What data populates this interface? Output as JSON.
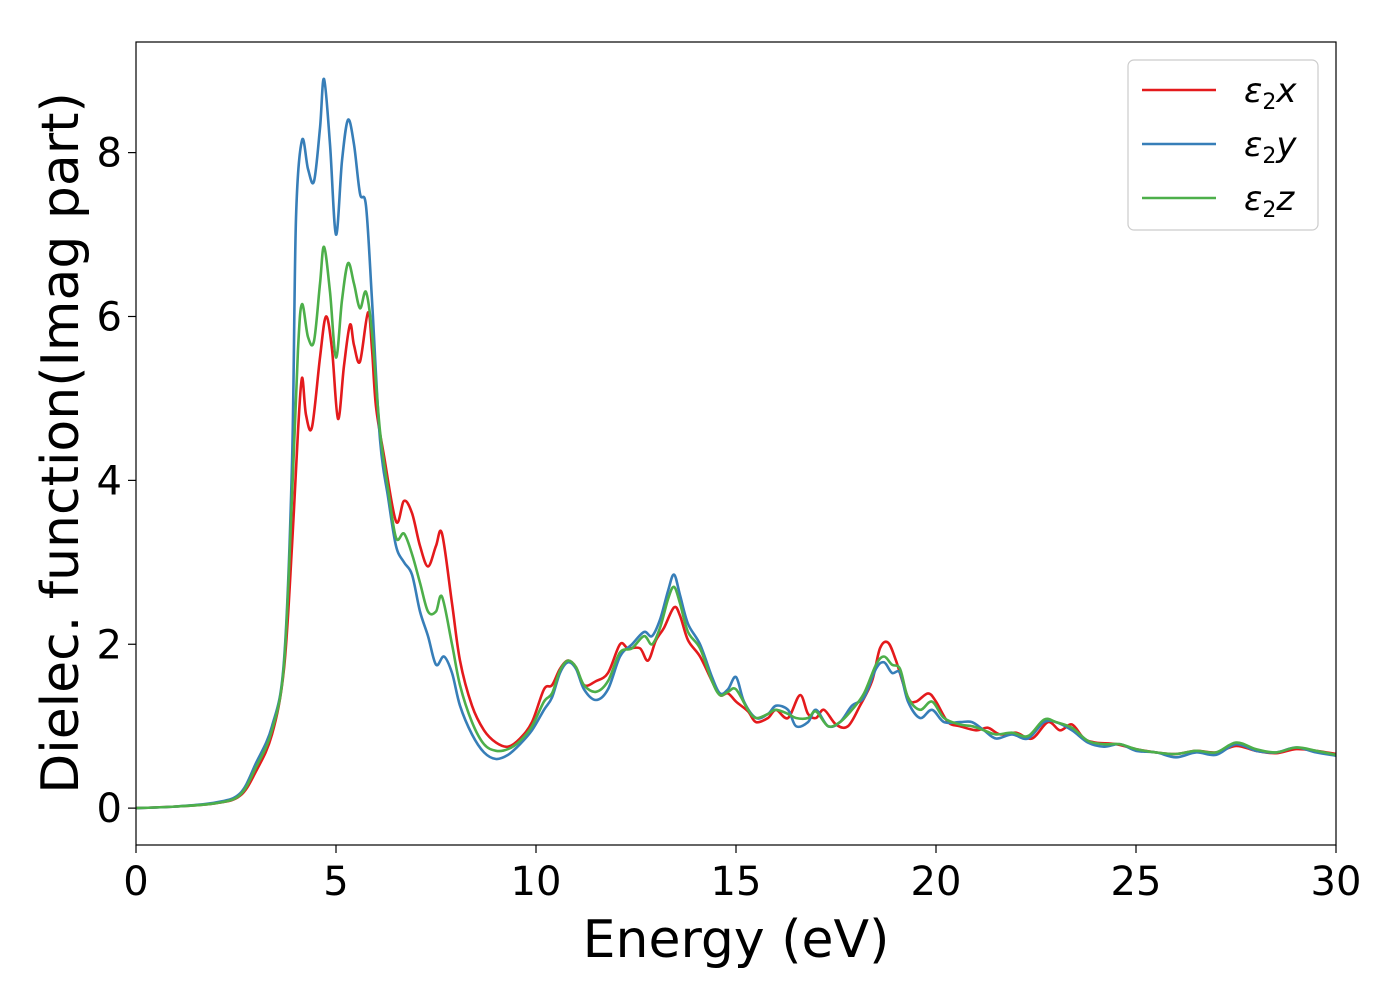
{
  "chart_data": {
    "type": "line",
    "xlabel": "Energy (eV)",
    "ylabel": "Dielec. function(Imag part)",
    "xlim": [
      0,
      30
    ],
    "ylim": [
      -0.45,
      9.35
    ],
    "xticks": [
      0,
      5,
      10,
      15,
      20,
      25,
      30
    ],
    "yticks": [
      0,
      2,
      4,
      6,
      8
    ],
    "grid": false,
    "legend_position": "top-right",
    "series": [
      {
        "name": "ε2x",
        "legend": {
          "base": "ε",
          "sub": "2",
          "tail": "x"
        },
        "color": "#e41a1c",
        "points": [
          [
            0,
            0
          ],
          [
            1,
            0.02
          ],
          [
            2,
            0.06
          ],
          [
            2.6,
            0.15
          ],
          [
            3.0,
            0.45
          ],
          [
            3.4,
            0.9
          ],
          [
            3.7,
            1.7
          ],
          [
            3.9,
            3.2
          ],
          [
            4.05,
            4.6
          ],
          [
            4.15,
            5.25
          ],
          [
            4.25,
            4.8
          ],
          [
            4.4,
            4.65
          ],
          [
            4.6,
            5.5
          ],
          [
            4.75,
            6.0
          ],
          [
            4.9,
            5.6
          ],
          [
            5.05,
            4.75
          ],
          [
            5.2,
            5.4
          ],
          [
            5.35,
            5.9
          ],
          [
            5.45,
            5.65
          ],
          [
            5.6,
            5.45
          ],
          [
            5.8,
            6.05
          ],
          [
            5.9,
            5.6
          ],
          [
            6.0,
            4.9
          ],
          [
            6.2,
            4.3
          ],
          [
            6.5,
            3.5
          ],
          [
            6.7,
            3.75
          ],
          [
            6.9,
            3.6
          ],
          [
            7.1,
            3.2
          ],
          [
            7.3,
            2.95
          ],
          [
            7.5,
            3.2
          ],
          [
            7.65,
            3.35
          ],
          [
            7.9,
            2.5
          ],
          [
            8.1,
            1.8
          ],
          [
            8.4,
            1.25
          ],
          [
            8.7,
            0.95
          ],
          [
            9.0,
            0.8
          ],
          [
            9.3,
            0.75
          ],
          [
            9.6,
            0.85
          ],
          [
            9.9,
            1.05
          ],
          [
            10.2,
            1.45
          ],
          [
            10.4,
            1.5
          ],
          [
            10.6,
            1.7
          ],
          [
            10.8,
            1.8
          ],
          [
            11.0,
            1.72
          ],
          [
            11.2,
            1.5
          ],
          [
            11.5,
            1.55
          ],
          [
            11.8,
            1.65
          ],
          [
            12.1,
            2.0
          ],
          [
            12.3,
            1.95
          ],
          [
            12.6,
            1.95
          ],
          [
            12.8,
            1.8
          ],
          [
            13.0,
            2.05
          ],
          [
            13.2,
            2.2
          ],
          [
            13.45,
            2.45
          ],
          [
            13.6,
            2.35
          ],
          [
            13.8,
            2.05
          ],
          [
            14.1,
            1.85
          ],
          [
            14.4,
            1.55
          ],
          [
            14.6,
            1.38
          ],
          [
            14.8,
            1.4
          ],
          [
            15.0,
            1.3
          ],
          [
            15.3,
            1.18
          ],
          [
            15.5,
            1.05
          ],
          [
            15.8,
            1.1
          ],
          [
            16.0,
            1.2
          ],
          [
            16.3,
            1.1
          ],
          [
            16.6,
            1.38
          ],
          [
            16.8,
            1.15
          ],
          [
            17.0,
            1.1
          ],
          [
            17.2,
            1.2
          ],
          [
            17.5,
            1.02
          ],
          [
            17.8,
            1.0
          ],
          [
            18.1,
            1.25
          ],
          [
            18.4,
            1.55
          ],
          [
            18.6,
            1.95
          ],
          [
            18.8,
            2.02
          ],
          [
            19.0,
            1.8
          ],
          [
            19.3,
            1.35
          ],
          [
            19.5,
            1.3
          ],
          [
            19.8,
            1.4
          ],
          [
            20.0,
            1.3
          ],
          [
            20.3,
            1.05
          ],
          [
            20.6,
            1.0
          ],
          [
            21.0,
            0.95
          ],
          [
            21.3,
            0.98
          ],
          [
            21.6,
            0.9
          ],
          [
            22.0,
            0.92
          ],
          [
            22.4,
            0.85
          ],
          [
            22.8,
            1.05
          ],
          [
            23.1,
            0.95
          ],
          [
            23.4,
            1.02
          ],
          [
            23.7,
            0.85
          ],
          [
            24.0,
            0.8
          ],
          [
            24.5,
            0.78
          ],
          [
            25.0,
            0.72
          ],
          [
            25.5,
            0.68
          ],
          [
            26.0,
            0.66
          ],
          [
            26.5,
            0.7
          ],
          [
            27.0,
            0.68
          ],
          [
            27.5,
            0.76
          ],
          [
            28.0,
            0.7
          ],
          [
            28.5,
            0.67
          ],
          [
            29.0,
            0.72
          ],
          [
            29.5,
            0.7
          ],
          [
            30.0,
            0.66
          ]
        ]
      },
      {
        "name": "ε2y",
        "legend": {
          "base": "ε",
          "sub": "2",
          "tail": "y"
        },
        "color": "#377eb8",
        "points": [
          [
            0,
            0
          ],
          [
            1,
            0.02
          ],
          [
            2,
            0.07
          ],
          [
            2.6,
            0.18
          ],
          [
            3.0,
            0.55
          ],
          [
            3.4,
            1.0
          ],
          [
            3.7,
            1.8
          ],
          [
            3.9,
            4.2
          ],
          [
            4.0,
            7.2
          ],
          [
            4.15,
            8.15
          ],
          [
            4.3,
            7.8
          ],
          [
            4.45,
            7.65
          ],
          [
            4.6,
            8.3
          ],
          [
            4.7,
            8.9
          ],
          [
            4.85,
            8.1
          ],
          [
            5.0,
            7.0
          ],
          [
            5.15,
            7.9
          ],
          [
            5.3,
            8.4
          ],
          [
            5.45,
            8.1
          ],
          [
            5.6,
            7.5
          ],
          [
            5.75,
            7.35
          ],
          [
            5.9,
            6.2
          ],
          [
            6.1,
            4.5
          ],
          [
            6.3,
            3.8
          ],
          [
            6.5,
            3.2
          ],
          [
            6.7,
            3.0
          ],
          [
            6.9,
            2.85
          ],
          [
            7.1,
            2.4
          ],
          [
            7.3,
            2.1
          ],
          [
            7.5,
            1.75
          ],
          [
            7.7,
            1.85
          ],
          [
            7.9,
            1.65
          ],
          [
            8.1,
            1.25
          ],
          [
            8.4,
            0.9
          ],
          [
            8.7,
            0.68
          ],
          [
            9.0,
            0.6
          ],
          [
            9.3,
            0.65
          ],
          [
            9.6,
            0.78
          ],
          [
            9.9,
            0.95
          ],
          [
            10.2,
            1.2
          ],
          [
            10.4,
            1.35
          ],
          [
            10.6,
            1.65
          ],
          [
            10.8,
            1.78
          ],
          [
            11.0,
            1.7
          ],
          [
            11.2,
            1.45
          ],
          [
            11.5,
            1.32
          ],
          [
            11.8,
            1.45
          ],
          [
            12.1,
            1.85
          ],
          [
            12.4,
            2.0
          ],
          [
            12.7,
            2.15
          ],
          [
            12.9,
            2.1
          ],
          [
            13.1,
            2.3
          ],
          [
            13.3,
            2.65
          ],
          [
            13.45,
            2.85
          ],
          [
            13.6,
            2.6
          ],
          [
            13.8,
            2.25
          ],
          [
            14.1,
            2.0
          ],
          [
            14.4,
            1.6
          ],
          [
            14.6,
            1.4
          ],
          [
            14.8,
            1.45
          ],
          [
            15.0,
            1.6
          ],
          [
            15.2,
            1.3
          ],
          [
            15.5,
            1.1
          ],
          [
            15.8,
            1.15
          ],
          [
            16.0,
            1.25
          ],
          [
            16.3,
            1.2
          ],
          [
            16.5,
            1.0
          ],
          [
            16.8,
            1.05
          ],
          [
            17.0,
            1.2
          ],
          [
            17.3,
            1.0
          ],
          [
            17.6,
            1.05
          ],
          [
            17.9,
            1.25
          ],
          [
            18.2,
            1.35
          ],
          [
            18.5,
            1.7
          ],
          [
            18.7,
            1.78
          ],
          [
            18.9,
            1.65
          ],
          [
            19.1,
            1.65
          ],
          [
            19.3,
            1.3
          ],
          [
            19.6,
            1.1
          ],
          [
            19.9,
            1.2
          ],
          [
            20.2,
            1.05
          ],
          [
            20.6,
            1.05
          ],
          [
            20.9,
            1.05
          ],
          [
            21.2,
            0.95
          ],
          [
            21.5,
            0.85
          ],
          [
            21.9,
            0.9
          ],
          [
            22.3,
            0.85
          ],
          [
            22.7,
            1.05
          ],
          [
            23.0,
            1.05
          ],
          [
            23.4,
            0.95
          ],
          [
            23.8,
            0.8
          ],
          [
            24.2,
            0.75
          ],
          [
            24.6,
            0.78
          ],
          [
            25.0,
            0.7
          ],
          [
            25.5,
            0.68
          ],
          [
            26.0,
            0.62
          ],
          [
            26.5,
            0.68
          ],
          [
            27.0,
            0.65
          ],
          [
            27.5,
            0.78
          ],
          [
            28.0,
            0.7
          ],
          [
            28.5,
            0.68
          ],
          [
            29.0,
            0.74
          ],
          [
            29.5,
            0.68
          ],
          [
            30.0,
            0.64
          ]
        ]
      },
      {
        "name": "ε2z",
        "legend": {
          "base": "ε",
          "sub": "2",
          "tail": "z"
        },
        "color": "#4daf4a",
        "points": [
          [
            0,
            0
          ],
          [
            1,
            0.02
          ],
          [
            2,
            0.06
          ],
          [
            2.6,
            0.16
          ],
          [
            3.0,
            0.5
          ],
          [
            3.4,
            0.95
          ],
          [
            3.7,
            1.75
          ],
          [
            3.9,
            3.8
          ],
          [
            4.05,
            5.6
          ],
          [
            4.15,
            6.15
          ],
          [
            4.3,
            5.75
          ],
          [
            4.45,
            5.7
          ],
          [
            4.6,
            6.4
          ],
          [
            4.7,
            6.85
          ],
          [
            4.85,
            6.3
          ],
          [
            5.0,
            5.5
          ],
          [
            5.15,
            6.2
          ],
          [
            5.3,
            6.65
          ],
          [
            5.45,
            6.4
          ],
          [
            5.6,
            6.1
          ],
          [
            5.75,
            6.3
          ],
          [
            5.9,
            5.8
          ],
          [
            6.1,
            4.6
          ],
          [
            6.3,
            3.9
          ],
          [
            6.5,
            3.3
          ],
          [
            6.7,
            3.35
          ],
          [
            6.9,
            3.1
          ],
          [
            7.1,
            2.75
          ],
          [
            7.3,
            2.4
          ],
          [
            7.5,
            2.4
          ],
          [
            7.65,
            2.58
          ],
          [
            7.9,
            2.0
          ],
          [
            8.1,
            1.5
          ],
          [
            8.4,
            1.05
          ],
          [
            8.7,
            0.78
          ],
          [
            9.0,
            0.7
          ],
          [
            9.3,
            0.72
          ],
          [
            9.6,
            0.82
          ],
          [
            9.9,
            1.0
          ],
          [
            10.2,
            1.3
          ],
          [
            10.4,
            1.4
          ],
          [
            10.6,
            1.68
          ],
          [
            10.8,
            1.8
          ],
          [
            11.0,
            1.72
          ],
          [
            11.2,
            1.5
          ],
          [
            11.5,
            1.42
          ],
          [
            11.8,
            1.55
          ],
          [
            12.1,
            1.9
          ],
          [
            12.4,
            1.95
          ],
          [
            12.7,
            2.1
          ],
          [
            12.9,
            2.0
          ],
          [
            13.1,
            2.2
          ],
          [
            13.3,
            2.55
          ],
          [
            13.45,
            2.7
          ],
          [
            13.6,
            2.5
          ],
          [
            13.8,
            2.15
          ],
          [
            14.1,
            1.95
          ],
          [
            14.4,
            1.55
          ],
          [
            14.6,
            1.38
          ],
          [
            14.8,
            1.42
          ],
          [
            15.0,
            1.45
          ],
          [
            15.3,
            1.2
          ],
          [
            15.5,
            1.1
          ],
          [
            15.8,
            1.15
          ],
          [
            16.0,
            1.2
          ],
          [
            16.3,
            1.15
          ],
          [
            16.5,
            1.1
          ],
          [
            16.8,
            1.1
          ],
          [
            17.0,
            1.18
          ],
          [
            17.3,
            1.0
          ],
          [
            17.6,
            1.05
          ],
          [
            17.9,
            1.2
          ],
          [
            18.2,
            1.4
          ],
          [
            18.5,
            1.75
          ],
          [
            18.7,
            1.85
          ],
          [
            18.9,
            1.75
          ],
          [
            19.1,
            1.7
          ],
          [
            19.3,
            1.35
          ],
          [
            19.6,
            1.2
          ],
          [
            19.9,
            1.3
          ],
          [
            20.2,
            1.1
          ],
          [
            20.6,
            1.02
          ],
          [
            20.9,
            1.0
          ],
          [
            21.2,
            0.95
          ],
          [
            21.5,
            0.9
          ],
          [
            21.9,
            0.92
          ],
          [
            22.3,
            0.88
          ],
          [
            22.7,
            1.08
          ],
          [
            23.0,
            1.05
          ],
          [
            23.4,
            0.98
          ],
          [
            23.8,
            0.82
          ],
          [
            24.2,
            0.78
          ],
          [
            24.6,
            0.78
          ],
          [
            25.0,
            0.72
          ],
          [
            25.5,
            0.68
          ],
          [
            26.0,
            0.66
          ],
          [
            26.5,
            0.7
          ],
          [
            27.0,
            0.68
          ],
          [
            27.5,
            0.8
          ],
          [
            28.0,
            0.72
          ],
          [
            28.5,
            0.68
          ],
          [
            29.0,
            0.74
          ],
          [
            29.5,
            0.7
          ],
          [
            30.0,
            0.65
          ]
        ]
      }
    ]
  }
}
